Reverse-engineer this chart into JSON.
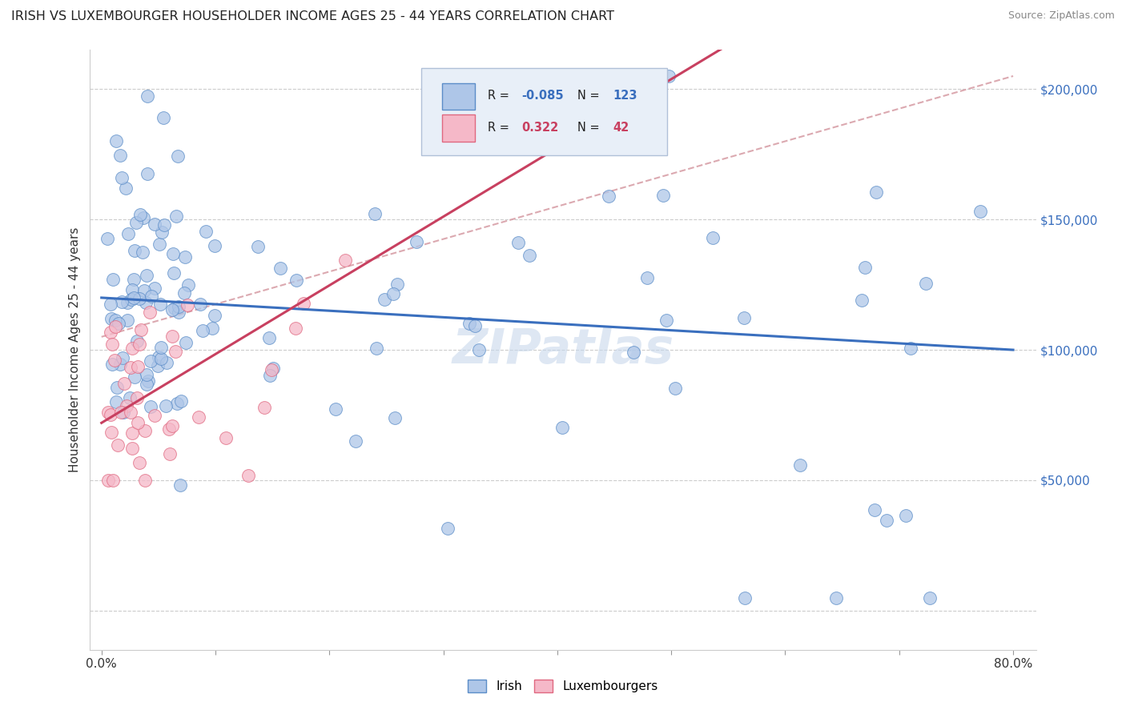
{
  "title": "IRISH VS LUXEMBOURGER HOUSEHOLDER INCOME AGES 25 - 44 YEARS CORRELATION CHART",
  "source": "Source: ZipAtlas.com",
  "ylabel": "Householder Income Ages 25 - 44 years",
  "xlim": [
    -0.01,
    0.82
  ],
  "ylim": [
    -15000,
    215000
  ],
  "yticks": [
    0,
    50000,
    100000,
    150000,
    200000
  ],
  "ytick_labels": [
    "",
    "$50,000",
    "$100,000",
    "$150,000",
    "$200,000"
  ],
  "ytick_labels_right": [
    "",
    "$50,000",
    "$100,000",
    "$150,000",
    "$200,000"
  ],
  "xtick_vals": [
    0.0,
    0.1,
    0.2,
    0.3,
    0.4,
    0.5,
    0.6,
    0.7,
    0.8
  ],
  "xtick_labels": [
    "0.0%",
    "",
    "",
    "",
    "",
    "",
    "",
    "",
    "80.0%"
  ],
  "irish_color": "#aec6e8",
  "irish_edge_color": "#5b8dc8",
  "lux_color": "#f5b8c8",
  "lux_edge_color": "#e06880",
  "irish_line_color": "#3a6fbe",
  "lux_line_color": "#c84060",
  "dashed_line_color": "#d8a0a8",
  "watermark_color": "#c8d8ec",
  "legend_box_color": "#e8eff8",
  "legend_border_color": "#b0c0d8"
}
